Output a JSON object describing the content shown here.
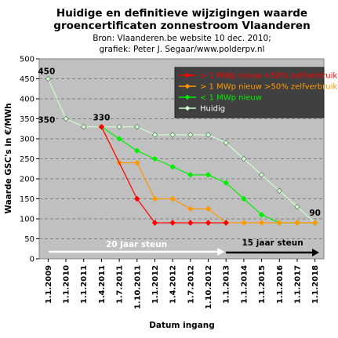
{
  "chart_data": {
    "type": "line",
    "title": "Huidige en definitieve wijzigingen waarde",
    "title_line2": "groencertificaten zonnestroom Vlaanderen",
    "subtitle": "Bron: Vlaanderen.be website 10 dec. 2010;",
    "subtitle_line2": "grafiek: Peter J. Segaar/www.polderpv.nl",
    "xlabel": "Datum ingang",
    "ylabel": "Waarde GSC's in €/MWh",
    "categories": [
      "1.1.2009",
      "1.1.2010",
      "1.1.2011",
      "1.4.2011",
      "1.7.2011",
      "1.10.2011",
      "1.1.2012",
      "1.4.2012",
      "1.7.2012",
      "1.10.2012",
      "1.1.2013",
      "1.1.2014",
      "1.1.2015",
      "1.1.2016",
      "1.1.2017",
      "1.1.2018"
    ],
    "ylim": [
      0,
      500
    ],
    "yticks": [
      0,
      50,
      100,
      150,
      200,
      250,
      300,
      350,
      400,
      450,
      500
    ],
    "grid": true,
    "legend_position": "top-right",
    "series": [
      {
        "name": "> 1 MWp nieuw <50% zelfverbruik",
        "color": "#ff0000",
        "values": [
          null,
          null,
          null,
          330,
          null,
          150,
          90,
          90,
          90,
          90,
          90,
          null,
          null,
          null,
          null,
          null
        ]
      },
      {
        "name": "> 1 MWp nieuw >50% zelfverbruik",
        "color": "#ff9900",
        "values": [
          null,
          null,
          null,
          330,
          240,
          240,
          150,
          150,
          125,
          125,
          90,
          90,
          90,
          90,
          90,
          90
        ]
      },
      {
        "name": "< 1 MWp nieuw",
        "color": "#00ee00",
        "values": [
          null,
          null,
          null,
          330,
          300,
          270,
          250,
          230,
          210,
          210,
          190,
          150,
          110,
          90,
          90,
          90
        ]
      },
      {
        "name": "Huidig",
        "color": "#ccffcc",
        "values": [
          450,
          350,
          330,
          330,
          330,
          330,
          310,
          310,
          310,
          310,
          290,
          250,
          210,
          170,
          130,
          90
        ]
      }
    ],
    "annotations": [
      {
        "text": "450",
        "category": "1.1.2009",
        "value": 450
      },
      {
        "text": "350",
        "category": "1.1.2009",
        "value": 350
      },
      {
        "text": "330",
        "category": "1.4.2011",
        "value": 330
      },
      {
        "text": "90",
        "category": "1.1.2018",
        "value": 90
      }
    ],
    "support_periods": [
      {
        "text": "20 jaar steun",
        "from": "1.1.2009",
        "to": "1.1.2013",
        "color": "#ffffff"
      },
      {
        "text": "15 jaar steun",
        "from": "1.1.2013",
        "to": "1.1.2018",
        "color": "#000000"
      }
    ]
  }
}
